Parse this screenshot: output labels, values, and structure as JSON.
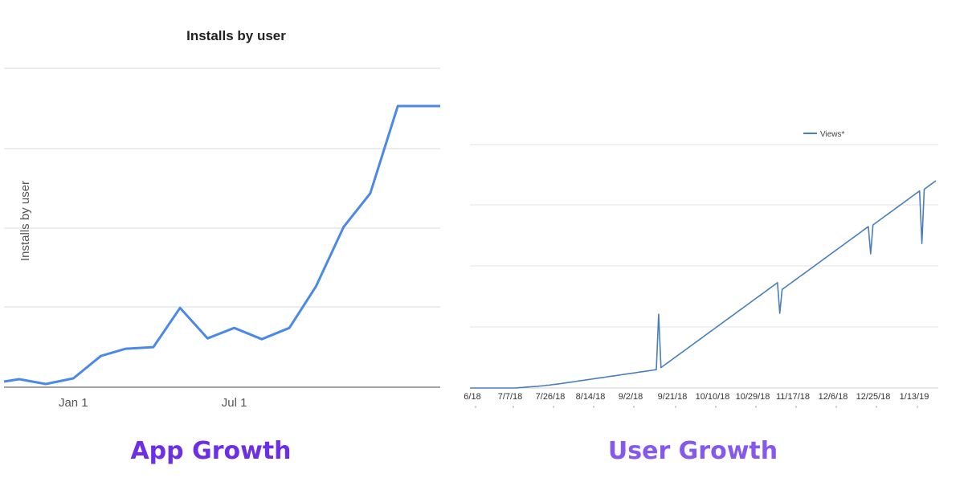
{
  "chart_data": [
    {
      "type": "line",
      "title": "Installs by user",
      "ylabel": "Installs by user",
      "xlabel": "",
      "x_tick_labels": [
        "Jan 1",
        "Jul 1"
      ],
      "y_tick_labels": [],
      "grid": true,
      "legend": "none",
      "color": "#4a89e8",
      "series": [
        {
          "x": [
            "2016-10-15",
            "2016-11-01",
            "2016-12-01",
            "2017-01-01",
            "2017-02-01",
            "2017-03-01",
            "2017-04-01",
            "2017-05-01",
            "2017-06-01",
            "2017-07-01",
            "2017-08-01",
            "2017-09-01",
            "2017-10-01",
            "2017-11-01",
            "2017-12-01",
            "2018-01-01",
            "2018-02-01",
            "2018-02-15"
          ],
          "values": [
            0.7,
            1.0,
            0.4,
            1.1,
            3.9,
            4.8,
            5.0,
            9.9,
            6.1,
            7.4,
            6.0,
            7.4,
            12.6,
            20.0,
            24.2,
            35.1,
            35.1,
            35.1
          ]
        }
      ]
    },
    {
      "type": "line",
      "title": "",
      "xlabel": "",
      "ylabel": "",
      "x_tick_labels": [
        "6/18",
        "7/7/18",
        "7/26/18",
        "8/14/18",
        "9/2/18",
        "9/21/18",
        "10/10/18",
        "10/29/18",
        "11/17/18",
        "12/6/18",
        "12/25/18",
        "1/13/19"
      ],
      "y_tick_labels": [],
      "grid": true,
      "legend": "top-center",
      "color": "#4a7ebb",
      "series": [
        {
          "name": "Views*",
          "x_start": "6/18/18",
          "x_end": "1/20/19",
          "values": [
            0.0,
            0.0,
            0.0,
            0.0,
            0.0,
            0.0,
            0.0,
            0.0,
            0.0,
            0.0,
            0.0,
            0.0,
            0.0,
            0.0,
            0.0,
            0.0,
            0.0,
            0.0,
            0.0,
            0.0,
            0.0,
            0.02,
            0.03,
            0.04,
            0.05,
            0.06,
            0.07,
            0.08,
            0.09,
            0.1,
            0.12,
            0.13,
            0.14,
            0.16,
            0.17,
            0.19,
            0.21,
            0.22,
            0.24,
            0.26,
            0.28,
            0.3,
            0.32,
            0.34,
            0.36,
            0.38,
            0.4,
            0.42,
            0.44,
            0.46,
            0.48,
            0.5,
            0.52,
            0.54,
            0.56,
            0.58,
            0.6,
            0.62,
            0.64,
            0.66,
            0.68,
            0.7,
            0.72,
            0.74,
            0.76,
            0.78,
            0.8,
            0.82,
            0.84,
            0.86,
            0.88,
            0.9,
            0.92,
            0.94,
            0.96,
            0.98,
            1.0,
            1.02,
            1.04,
            1.06,
            1.08,
            4.35,
            1.2,
            1.3,
            1.4,
            1.5,
            1.6,
            1.7,
            1.8,
            1.9,
            2.0,
            2.1,
            2.2,
            2.3,
            2.4,
            2.5,
            2.6,
            2.7,
            2.8,
            2.9,
            3.0,
            3.1,
            3.2,
            3.3,
            3.4,
            3.5,
            3.6,
            3.7,
            3.8,
            3.9,
            4.0,
            4.1,
            4.2,
            4.3,
            4.4,
            4.5,
            4.6,
            4.7,
            4.8,
            4.9,
            5.0,
            5.1,
            5.2,
            5.3,
            5.4,
            5.5,
            5.6,
            5.7,
            5.8,
            5.9,
            6.0,
            6.1,
            6.2,
            4.4,
            5.8,
            5.9,
            6.0,
            6.1,
            6.2,
            6.3,
            6.4,
            6.5,
            6.6,
            6.7,
            6.8,
            6.9,
            7.0,
            7.1,
            7.2,
            7.3,
            7.4,
            7.5,
            7.6,
            7.7,
            7.8,
            7.9,
            8.0,
            8.1,
            8.2,
            8.3,
            8.4,
            8.5,
            8.6,
            8.7,
            8.8,
            8.9,
            9.0,
            9.1,
            9.2,
            9.3,
            9.4,
            9.5,
            7.9,
            9.6,
            9.7,
            9.8,
            9.9,
            10.0,
            10.1,
            10.2,
            10.3,
            10.4,
            10.5,
            10.6,
            10.7,
            10.8,
            10.9,
            11.0,
            11.1,
            11.2,
            11.3,
            11.4,
            11.5,
            11.6,
            8.5,
            11.7,
            11.8,
            11.9,
            12.0,
            12.1,
            12.2
          ]
        }
      ]
    }
  ],
  "captions": {
    "left": "App Growth",
    "right": "User Growth",
    "left_color": "#6c2ee6",
    "right_color": "#8659ee"
  }
}
